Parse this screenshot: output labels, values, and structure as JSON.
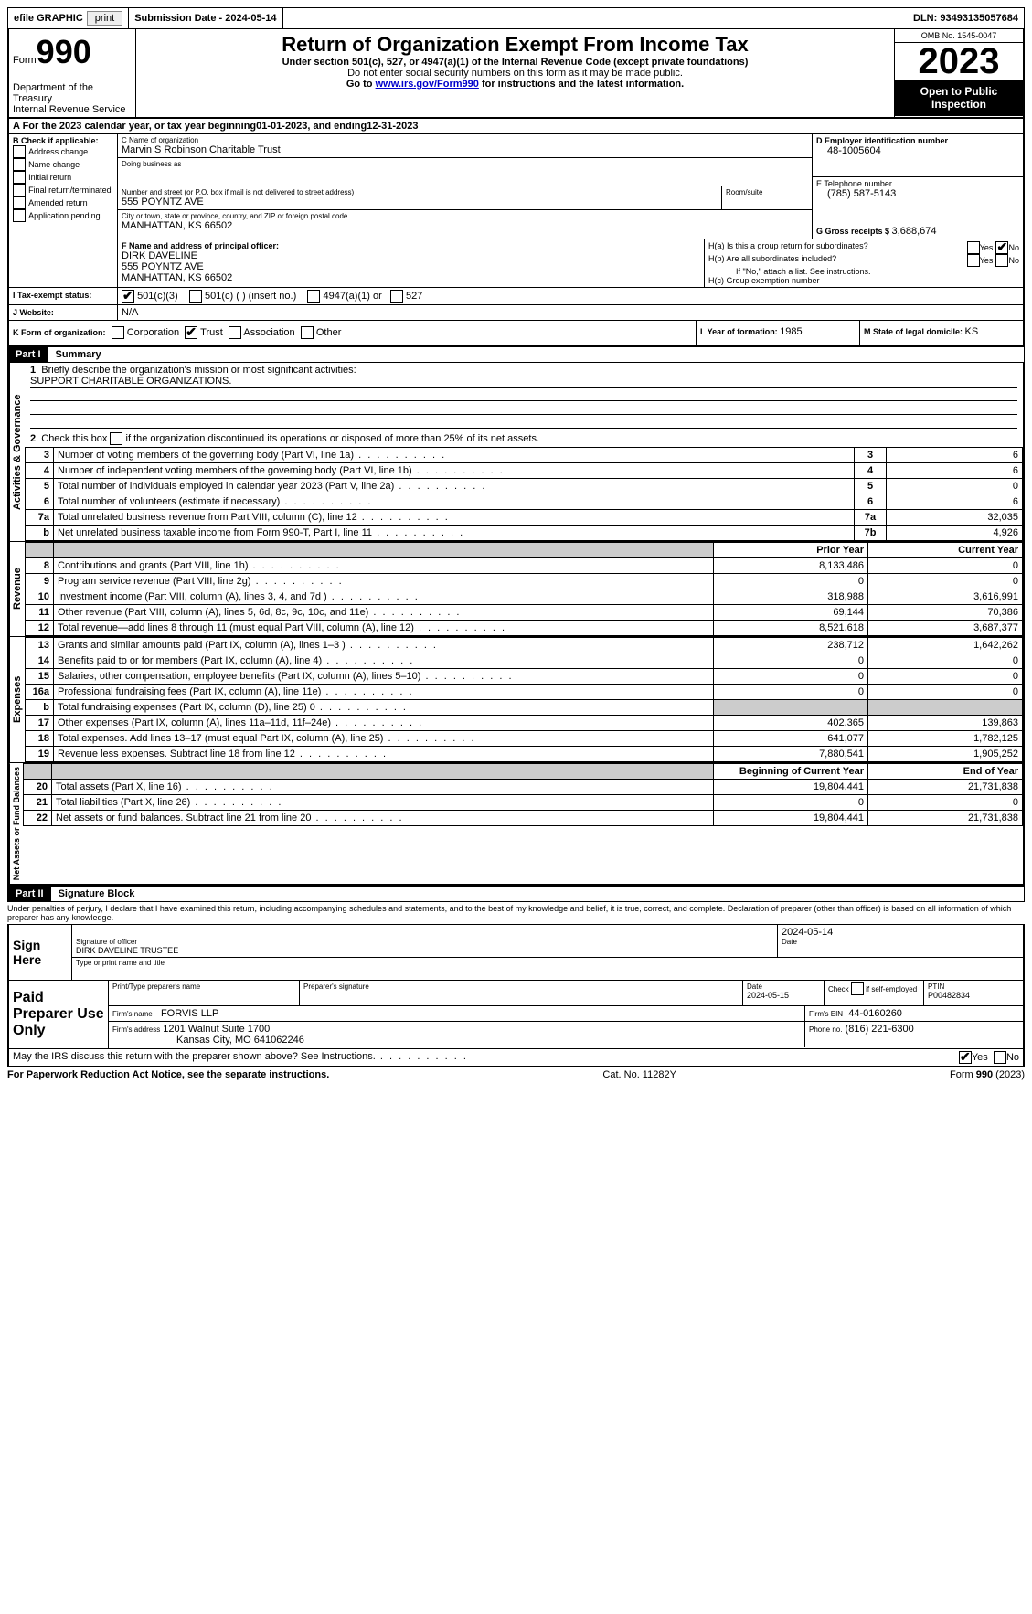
{
  "topbar": {
    "efile_label": "efile GRAPHIC",
    "print_btn": "print",
    "submission_label": "Submission Date - 2024-05-14",
    "dln_label": "DLN: 93493135057684"
  },
  "header": {
    "form_word": "Form",
    "form_num": "990",
    "dept1": "Department of the Treasury",
    "dept2": "Internal Revenue Service",
    "title": "Return of Organization Exempt From Income Tax",
    "sub1": "Under section 501(c), 527, or 4947(a)(1) of the Internal Revenue Code (except private foundations)",
    "sub2": "Do not enter social security numbers on this form as it may be made public.",
    "sub3_pre": "Go to ",
    "sub3_link": "www.irs.gov/Form990",
    "sub3_post": " for instructions and the latest information.",
    "omb": "OMB No. 1545-0047",
    "year": "2023",
    "openpublic": "Open to Public Inspection"
  },
  "lineA": {
    "text_pre": "A For the 2023 calendar year, or tax year beginning ",
    "begin": "01-01-2023",
    "mid": " , and ending ",
    "end": "12-31-2023"
  },
  "boxB": {
    "label": "B Check if applicable:",
    "opts": [
      "Address change",
      "Name change",
      "Initial return",
      "Final return/terminated",
      "Amended return",
      "Application pending"
    ]
  },
  "boxC": {
    "name_label": "C Name of organization",
    "name": "Marvin S Robinson Charitable Trust",
    "dba_label": "Doing business as",
    "dba": "",
    "street_label": "Number and street (or P.O. box if mail is not delivered to street address)",
    "street": "555 POYNTZ AVE",
    "room_label": "Room/suite",
    "city_label": "City or town, state or province, country, and ZIP or foreign postal code",
    "city": "MANHATTAN, KS  66502"
  },
  "boxD": {
    "label": "D Employer identification number",
    "value": "48-1005604"
  },
  "boxE": {
    "label": "E Telephone number",
    "value": "(785) 587-5143"
  },
  "boxG": {
    "label": "G Gross receipts $ ",
    "value": "3,688,674"
  },
  "boxF": {
    "label": "F  Name and address of principal officer:",
    "line1": "DIRK DAVELINE",
    "line2": "555 POYNTZ AVE",
    "line3": "MANHATTAN, KS  66502"
  },
  "boxH": {
    "a_label": "H(a)  Is this a group return for subordinates?",
    "b_label": "H(b)  Are all subordinates included?",
    "b_note": "If \"No,\" attach a list. See instructions.",
    "c_label": "H(c)  Group exemption number",
    "yes": "Yes",
    "no": "No"
  },
  "boxI": {
    "label": "I  Tax-exempt status:",
    "o1": "501(c)(3)",
    "o2": "501(c) (  ) (insert no.)",
    "o3": "4947(a)(1) or",
    "o4": "527"
  },
  "boxJ": {
    "label": "J  Website:",
    "value": "N/A"
  },
  "boxK": {
    "label": "K Form of organization:",
    "opts": [
      "Corporation",
      "Trust",
      "Association",
      "Other"
    ]
  },
  "boxL": {
    "label": "L Year of formation: ",
    "value": "1985"
  },
  "boxM": {
    "label": "M State of legal domicile: ",
    "value": "KS"
  },
  "part1": {
    "hdr": "Part I",
    "title": "Summary",
    "l1_label": "Briefly describe the organization's mission or most significant activities:",
    "l1_text": "SUPPORT CHARITABLE ORGANIZATIONS.",
    "l2_label": "Check this box           if the organization discontinued its operations or disposed of more than 25% of its net assets.",
    "rows_gov": [
      {
        "n": "3",
        "t": "Number of voting members of the governing body (Part VI, line 1a)",
        "box": "3",
        "v": "6"
      },
      {
        "n": "4",
        "t": "Number of independent voting members of the governing body (Part VI, line 1b)",
        "box": "4",
        "v": "6"
      },
      {
        "n": "5",
        "t": "Total number of individuals employed in calendar year 2023 (Part V, line 2a)",
        "box": "5",
        "v": "0"
      },
      {
        "n": "6",
        "t": "Total number of volunteers (estimate if necessary)",
        "box": "6",
        "v": "6"
      },
      {
        "n": "7a",
        "t": "Total unrelated business revenue from Part VIII, column (C), line 12",
        "box": "7a",
        "v": "32,035"
      },
      {
        "n": "b",
        "t": "Net unrelated business taxable income from Form 990-T, Part I, line 11",
        "box": "7b",
        "v": "4,926"
      }
    ],
    "col_prior": "Prior Year",
    "col_current": "Current Year",
    "rows_rev": [
      {
        "n": "8",
        "t": "Contributions and grants (Part VIII, line 1h)",
        "p": "8,133,486",
        "c": "0"
      },
      {
        "n": "9",
        "t": "Program service revenue (Part VIII, line 2g)",
        "p": "0",
        "c": "0"
      },
      {
        "n": "10",
        "t": "Investment income (Part VIII, column (A), lines 3, 4, and 7d )",
        "p": "318,988",
        "c": "3,616,991"
      },
      {
        "n": "11",
        "t": "Other revenue (Part VIII, column (A), lines 5, 6d, 8c, 9c, 10c, and 11e)",
        "p": "69,144",
        "c": "70,386"
      },
      {
        "n": "12",
        "t": "Total revenue—add lines 8 through 11 (must equal Part VIII, column (A), line 12)",
        "p": "8,521,618",
        "c": "3,687,377"
      }
    ],
    "rows_exp": [
      {
        "n": "13",
        "t": "Grants and similar amounts paid (Part IX, column (A), lines 1–3 )",
        "p": "238,712",
        "c": "1,642,262"
      },
      {
        "n": "14",
        "t": "Benefits paid to or for members (Part IX, column (A), line 4)",
        "p": "0",
        "c": "0"
      },
      {
        "n": "15",
        "t": "Salaries, other compensation, employee benefits (Part IX, column (A), lines 5–10)",
        "p": "0",
        "c": "0"
      },
      {
        "n": "16a",
        "t": "Professional fundraising fees (Part IX, column (A), line 11e)",
        "p": "0",
        "c": "0"
      },
      {
        "n": "b",
        "t": "Total fundraising expenses (Part IX, column (D), line 25) 0",
        "p": "",
        "c": "",
        "shadeP": true,
        "shadeC": true,
        "small": true
      },
      {
        "n": "17",
        "t": "Other expenses (Part IX, column (A), lines 11a–11d, 11f–24e)",
        "p": "402,365",
        "c": "139,863"
      },
      {
        "n": "18",
        "t": "Total expenses. Add lines 13–17 (must equal Part IX, column (A), line 25)",
        "p": "641,077",
        "c": "1,782,125"
      },
      {
        "n": "19",
        "t": "Revenue less expenses. Subtract line 18 from line 12",
        "p": "7,880,541",
        "c": "1,905,252"
      }
    ],
    "col_boy": "Beginning of Current Year",
    "col_eoy": "End of Year",
    "rows_net": [
      {
        "n": "20",
        "t": "Total assets (Part X, line 16)",
        "p": "19,804,441",
        "c": "21,731,838"
      },
      {
        "n": "21",
        "t": "Total liabilities (Part X, line 26)",
        "p": "0",
        "c": "0"
      },
      {
        "n": "22",
        "t": "Net assets or fund balances. Subtract line 21 from line 20",
        "p": "19,804,441",
        "c": "21,731,838"
      }
    ],
    "side_gov": "Activities & Governance",
    "side_rev": "Revenue",
    "side_exp": "Expenses",
    "side_net": "Net Assets or Fund Balances"
  },
  "part2": {
    "hdr": "Part II",
    "title": "Signature Block",
    "decl": "Under penalties of perjury, I declare that I have examined this return, including accompanying schedules and statements, and to the best of my knowledge and belief, it is true, correct, and complete. Declaration of preparer (other than officer) is based on all information of which preparer has any knowledge.",
    "sign_here": "Sign Here",
    "sig_officer_label": "Signature of officer",
    "sig_officer_name": "DIRK DAVELINE  TRUSTEE",
    "sig_type_label": "Type or print name and title",
    "sig_date_label": "Date",
    "sig_date": "2024-05-14",
    "paid": "Paid Preparer Use Only",
    "prep_name_label": "Print/Type preparer's name",
    "prep_sig_label": "Preparer's signature",
    "prep_date_label": "Date",
    "prep_date": "2024-05-15",
    "prep_self_label": "Check          if self-employed",
    "ptin_label": "PTIN",
    "ptin": "P00482834",
    "firm_name_label": "Firm's name",
    "firm_name": "FORVIS LLP",
    "firm_ein_label": "Firm's EIN",
    "firm_ein": "44-0160260",
    "firm_addr_label": "Firm's address",
    "firm_addr1": "1201 Walnut Suite 1700",
    "firm_addr2": "Kansas City, MO  641062246",
    "firm_phone_label": "Phone no.",
    "firm_phone": "(816) 221-6300",
    "discuss": "May the IRS discuss this return with the preparer shown above? See Instructions.",
    "yes": "Yes",
    "no": "No"
  },
  "footer": {
    "left": "For Paperwork Reduction Act Notice, see the separate instructions.",
    "mid": "Cat. No. 11282Y",
    "right_a": "Form ",
    "right_b": "990",
    "right_c": " (2023)"
  }
}
